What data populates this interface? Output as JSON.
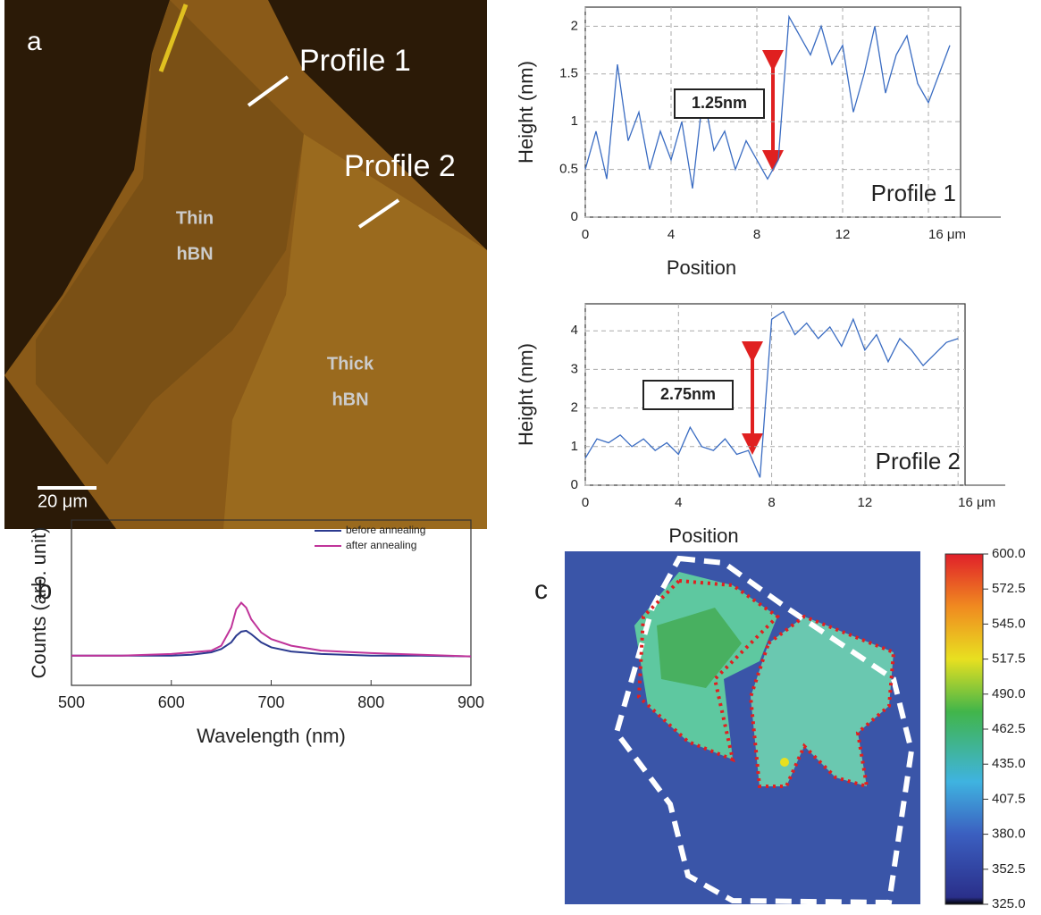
{
  "image_a": {
    "label": "a",
    "profile_1": "Profile 1",
    "profile_2": "Profile 2",
    "thin": [
      "Thin",
      "hBN"
    ],
    "thick": [
      "Thick",
      "hBN"
    ],
    "scale_bar": "20 μm"
  },
  "map_c": {
    "label": "c",
    "colorbar": {
      "lim": [
        325,
        600
      ],
      "ticks": [
        {
          "value": 600,
          "label": "600.0"
        },
        572.5,
        {
          "value": 545,
          "label": "545.0"
        },
        517.5,
        {
          "value": 490,
          "label": "490.0"
        },
        462.5,
        {
          "value": 435,
          "label": "435.0"
        },
        407.5,
        {
          "value": 380,
          "label": "380.0"
        },
        352.5,
        {
          "value": 325,
          "label": "325.0"
        }
      ]
    }
  },
  "chart_data": [
    {
      "type": "line",
      "annotation": "1.25nm",
      "label": "Profile 1",
      "x_label": "Position",
      "y_label": "Height (nm)",
      "xlim": [
        0,
        17.5
      ],
      "xticks": [
        0,
        4,
        8,
        12,
        {
          "value": 16,
          "label": "16 μm"
        }
      ],
      "ylim": [
        0,
        2.2
      ],
      "yticks": [
        0,
        0.5,
        1,
        1.5,
        2
      ],
      "grid": true,
      "x": [
        0,
        0.5,
        1,
        1.5,
        2,
        2.5,
        3,
        3.5,
        4,
        4.5,
        5,
        5.5,
        6,
        6.5,
        7,
        7.5,
        8,
        8.5,
        9,
        9.5,
        10,
        10.5,
        11,
        11.5,
        12,
        12.5,
        13,
        13.5,
        14,
        14.5,
        15,
        15.5,
        16,
        16.5,
        17
      ],
      "series": [
        {
          "color": "#3a6cc2",
          "values": [
            0.5,
            0.9,
            0.4,
            1.6,
            0.8,
            1.1,
            0.5,
            0.9,
            0.6,
            1.0,
            0.3,
            1.3,
            0.7,
            0.9,
            0.5,
            0.8,
            0.6,
            0.4,
            0.6,
            2.1,
            1.9,
            1.7,
            2.0,
            1.6,
            1.8,
            1.1,
            1.5,
            2.0,
            1.3,
            1.7,
            1.9,
            1.4,
            1.2,
            1.5,
            1.8
          ]
        }
      ]
    },
    {
      "type": "line",
      "annotation": "2.75nm",
      "label": "Profile 2",
      "x_label": "Position",
      "y_label": "Height (nm)",
      "xlim": [
        0,
        16.3
      ],
      "xticks": [
        0,
        4,
        8,
        12,
        {
          "value": 16,
          "label": "16 μm"
        }
      ],
      "ylim": [
        0,
        4.7
      ],
      "yticks": [
        0,
        1,
        2,
        3,
        4
      ],
      "grid": true,
      "x": [
        0,
        0.5,
        1,
        1.5,
        2,
        2.5,
        3,
        3.5,
        4,
        4.5,
        5,
        5.5,
        6,
        6.5,
        7,
        7.5,
        8,
        8.5,
        9,
        9.5,
        10,
        10.5,
        11,
        11.5,
        12,
        12.5,
        13,
        13.5,
        14,
        14.5,
        15,
        15.5,
        16
      ],
      "series": [
        {
          "color": "#3a6cc2",
          "values": [
            0.7,
            1.2,
            1.1,
            1.3,
            1.0,
            1.2,
            0.9,
            1.1,
            0.8,
            1.5,
            1.0,
            0.9,
            1.2,
            0.8,
            0.9,
            0.2,
            4.3,
            4.5,
            3.9,
            4.2,
            3.8,
            4.1,
            3.6,
            4.3,
            3.5,
            3.9,
            3.2,
            3.8,
            3.5,
            3.1,
            3.4,
            3.7,
            3.8
          ]
        }
      ]
    },
    {
      "type": "line",
      "label": "b",
      "x_label": "Wavelength (nm)",
      "y_label": "Counts (arb. unit)",
      "xlim": [
        500,
        900
      ],
      "xticks": [
        500,
        600,
        700,
        800,
        900
      ],
      "ylim": [
        0,
        100
      ],
      "grid": false,
      "legend": "upper right",
      "x": [
        500,
        550,
        600,
        620,
        640,
        650,
        660,
        665,
        670,
        675,
        680,
        690,
        700,
        720,
        750,
        800,
        850,
        900
      ],
      "series": [
        {
          "name": "before annealing",
          "color": "#2b3a8f",
          "values": [
            18,
            18,
            18,
            18.5,
            20,
            22,
            26,
            30,
            32.5,
            33,
            31,
            26,
            23,
            20.5,
            19,
            18,
            18,
            17.5
          ]
        },
        {
          "name": "after annealing",
          "color": "#c0349a",
          "values": [
            18,
            18,
            19,
            20,
            21,
            24,
            35,
            46,
            50,
            47,
            40,
            32,
            28,
            24,
            21,
            19.5,
            18.5,
            17.5
          ]
        }
      ]
    }
  ]
}
